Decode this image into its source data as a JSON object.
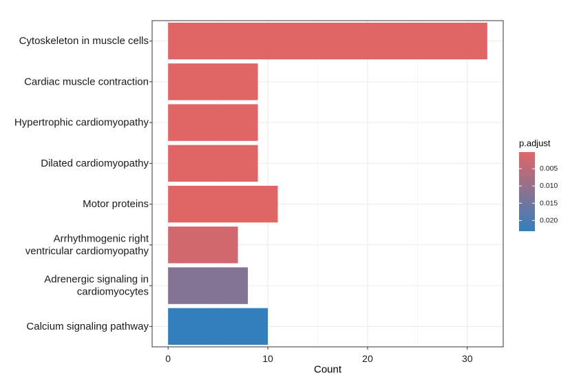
{
  "chart_data": {
    "type": "bar",
    "orientation": "horizontal",
    "categories": [
      [
        "Cytoskeleton in muscle cells"
      ],
      [
        "Cardiac muscle contraction"
      ],
      [
        "Hypertrophic cardiomyopathy"
      ],
      [
        "Dilated cardiomyopathy"
      ],
      [
        "Motor proteins"
      ],
      [
        "Arrhythmogenic right",
        "ventricular cardiomyopathy"
      ],
      [
        "Adrenergic signaling in",
        "cardiomyocytes"
      ],
      [
        "Calcium signaling pathway"
      ]
    ],
    "values": [
      32,
      9,
      9,
      9,
      11,
      7,
      8,
      10
    ],
    "p_adjust": [
      0.0002,
      0.0002,
      0.0002,
      0.0002,
      0.0002,
      0.0022,
      0.0125,
      0.0231
    ],
    "xlabel": "Count",
    "ylabel": "",
    "xlim": [
      -1.6,
      33.6
    ],
    "xticks": [
      0,
      10,
      20,
      30
    ],
    "grid": true,
    "legend": {
      "title": "p.adjust",
      "position": "right",
      "ticks": [
        0.005,
        0.01,
        0.015,
        0.02
      ],
      "tick_labels": [
        "0.005",
        "0.010",
        "0.015",
        "0.020"
      ],
      "range": [
        0.0002,
        0.0231
      ],
      "low_color": "#E06666",
      "high_color": "#337FBD"
    }
  }
}
